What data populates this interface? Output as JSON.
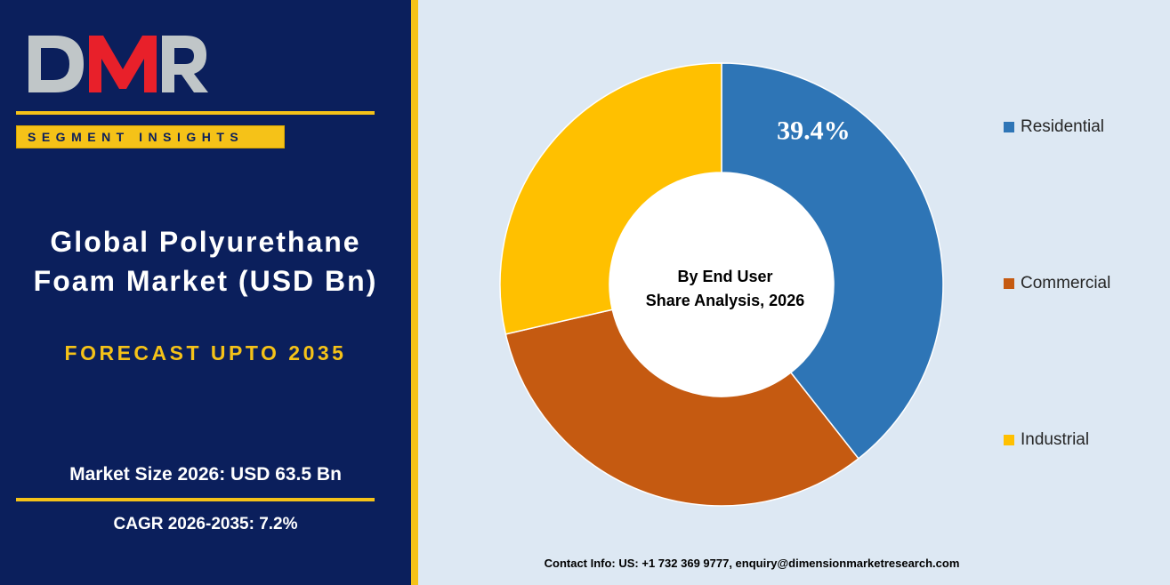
{
  "branding": {
    "logo_text": "DMR",
    "segment_label": "SEGMENT INSIGHTS"
  },
  "report": {
    "title": "Global Polyurethane Foam Market (USD Bn)",
    "forecast": "FORECAST UPTO 2035",
    "market_size": "Market Size 2026: USD 63.5 Bn",
    "cagr": "CAGR 2026-2035: 7.2%"
  },
  "contact": "Contact Info: US: +1 732 369 9777, enquiry@dimensionmarketresearch.com",
  "colors": {
    "navy": "#0b1f5c",
    "gold": "#f5c218",
    "chart_background": "#dde8f3",
    "residential": "#2e75b6",
    "commercial": "#c55a11",
    "industrial": "#ffc000",
    "logo_red": "#e8202a",
    "logo_silver": "#c0c6c8"
  },
  "chart_data": {
    "type": "pie",
    "variant": "donut",
    "center_label": [
      "By End User",
      "Share Analysis, 2026"
    ],
    "start_angle_deg": 0,
    "direction": "clockwise",
    "legend_position": "right",
    "series": [
      {
        "name": "Residential",
        "value": 39.4,
        "label": "39.4%",
        "color": "#2e75b6"
      },
      {
        "name": "Commercial",
        "value": 32.0,
        "label": "",
        "color": "#c55a11"
      },
      {
        "name": "Industrial",
        "value": 28.6,
        "label": "",
        "color": "#ffc000"
      }
    ]
  }
}
